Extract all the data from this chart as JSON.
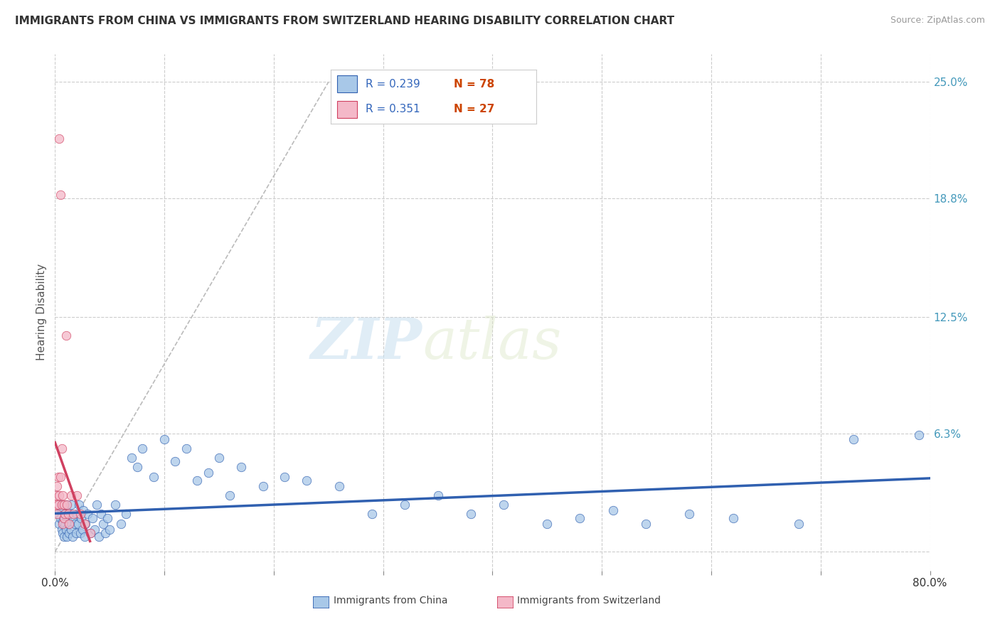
{
  "title": "IMMIGRANTS FROM CHINA VS IMMIGRANTS FROM SWITZERLAND HEARING DISABILITY CORRELATION CHART",
  "source": "Source: ZipAtlas.com",
  "ylabel": "Hearing Disability",
  "legend_china": "Immigrants from China",
  "legend_switzerland": "Immigrants from Switzerland",
  "R_china": 0.239,
  "N_china": 78,
  "R_switzerland": 0.351,
  "N_switzerland": 27,
  "color_china": "#a8c8e8",
  "color_switzerland": "#f4b8c8",
  "trendline_china": "#3060b0",
  "trendline_switzerland": "#d04060",
  "xlim": [
    0.0,
    0.8
  ],
  "ylim": [
    -0.01,
    0.265
  ],
  "yticks": [
    0.0,
    0.063,
    0.125,
    0.188,
    0.25
  ],
  "ytick_labels": [
    "",
    "6.3%",
    "12.5%",
    "18.8%",
    "25.0%"
  ],
  "xticks": [
    0.0,
    0.1,
    0.2,
    0.3,
    0.4,
    0.5,
    0.6,
    0.7,
    0.8
  ],
  "xtick_labels": [
    "0.0%",
    "",
    "",
    "",
    "",
    "",
    "",
    "",
    "80.0%"
  ],
  "watermark_zip": "ZIP",
  "watermark_atlas": "atlas",
  "background_color": "#ffffff",
  "grid_color": "#cccccc",
  "china_x": [
    0.003,
    0.004,
    0.005,
    0.005,
    0.006,
    0.006,
    0.007,
    0.007,
    0.008,
    0.008,
    0.009,
    0.009,
    0.01,
    0.01,
    0.011,
    0.011,
    0.012,
    0.013,
    0.014,
    0.015,
    0.015,
    0.016,
    0.017,
    0.018,
    0.019,
    0.02,
    0.021,
    0.022,
    0.023,
    0.024,
    0.025,
    0.026,
    0.027,
    0.028,
    0.03,
    0.032,
    0.034,
    0.036,
    0.038,
    0.04,
    0.042,
    0.044,
    0.046,
    0.048,
    0.05,
    0.055,
    0.06,
    0.065,
    0.07,
    0.075,
    0.08,
    0.09,
    0.1,
    0.11,
    0.12,
    0.13,
    0.14,
    0.15,
    0.16,
    0.17,
    0.19,
    0.21,
    0.23,
    0.26,
    0.29,
    0.32,
    0.35,
    0.38,
    0.41,
    0.45,
    0.48,
    0.51,
    0.54,
    0.58,
    0.62,
    0.68,
    0.73,
    0.79
  ],
  "china_y": [
    0.02,
    0.015,
    0.025,
    0.018,
    0.012,
    0.022,
    0.016,
    0.01,
    0.018,
    0.008,
    0.014,
    0.02,
    0.012,
    0.025,
    0.008,
    0.018,
    0.015,
    0.01,
    0.02,
    0.012,
    0.025,
    0.008,
    0.018,
    0.015,
    0.01,
    0.02,
    0.015,
    0.025,
    0.01,
    0.018,
    0.012,
    0.022,
    0.008,
    0.015,
    0.02,
    0.01,
    0.018,
    0.012,
    0.025,
    0.008,
    0.02,
    0.015,
    0.01,
    0.018,
    0.012,
    0.025,
    0.015,
    0.02,
    0.05,
    0.045,
    0.055,
    0.04,
    0.06,
    0.048,
    0.055,
    0.038,
    0.042,
    0.05,
    0.03,
    0.045,
    0.035,
    0.04,
    0.038,
    0.035,
    0.02,
    0.025,
    0.03,
    0.02,
    0.025,
    0.015,
    0.018,
    0.022,
    0.015,
    0.02,
    0.018,
    0.015,
    0.06,
    0.062
  ],
  "switzerland_x": [
    0.001,
    0.001,
    0.002,
    0.002,
    0.003,
    0.003,
    0.004,
    0.004,
    0.005,
    0.005,
    0.006,
    0.006,
    0.007,
    0.007,
    0.008,
    0.008,
    0.009,
    0.01,
    0.011,
    0.012,
    0.013,
    0.015,
    0.017,
    0.02,
    0.023,
    0.027,
    0.032
  ],
  "switzerland_y": [
    0.03,
    0.025,
    0.035,
    0.02,
    0.04,
    0.025,
    0.22,
    0.03,
    0.19,
    0.04,
    0.055,
    0.025,
    0.03,
    0.015,
    0.025,
    0.018,
    0.02,
    0.115,
    0.025,
    0.02,
    0.015,
    0.03,
    0.02,
    0.03,
    0.02,
    0.015,
    0.01
  ]
}
